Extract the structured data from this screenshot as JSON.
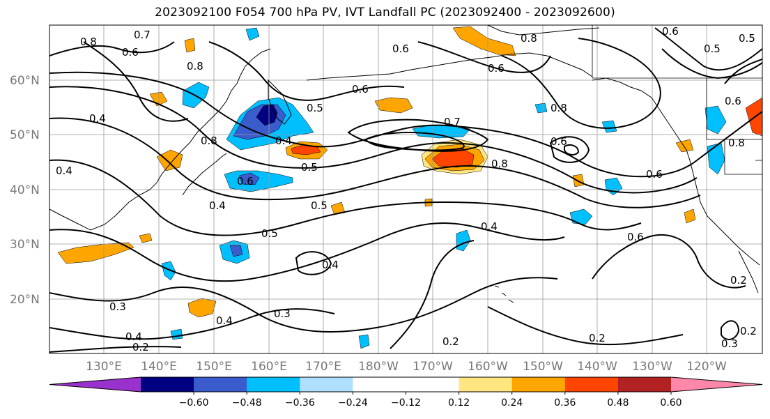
{
  "title": "2023092100 F054 700 hPa PV, IVT Landfall PC (2023092400 - 2023092600)",
  "lat_labels": [
    "60°N",
    "50°N",
    "40°N",
    "30°N",
    "20°N"
  ],
  "lon_labels": [
    "130°E",
    "140°E",
    "150°E",
    "160°E",
    "170°E",
    "180°W",
    "170°W",
    "160°W",
    "150°W",
    "140°W",
    "130°W",
    "120°W"
  ],
  "colorbar": {
    "colors": [
      "#9932cc",
      "#000080",
      "#3a5ccc",
      "#00bfff",
      "#b0e0ff",
      "#ffffff",
      "#ffffff",
      "#ffe680",
      "#ffa500",
      "#ff4500",
      "#b22222",
      "#ff88aa"
    ],
    "tick_labels": [
      "-0.60",
      "-0.48",
      "-0.36",
      "-0.24",
      "-0.12",
      "0.12",
      "0.24",
      "0.36",
      "0.48",
      "0.60"
    ]
  },
  "contour_labels": [
    "0.7",
    "0.8",
    "0.6",
    "0.8",
    "0.4",
    "0.5",
    "0.6",
    "0.8",
    "0.4",
    "0.5",
    "0.7",
    "0.8",
    "0.6",
    "0.8",
    "0.6",
    "0.4",
    "0.6",
    "0.5",
    "0.4",
    "0.5",
    "0.4",
    "0.4",
    "0.6",
    "0.3",
    "0.4",
    "0.3",
    "0.4",
    "0.2",
    "0.2",
    "0.2",
    "0.2",
    "0.3",
    "0.2",
    "0.6",
    "0.8",
    "0.6",
    "0.5",
    "0.8",
    "0.6",
    "0.5",
    "0.6"
  ]
}
